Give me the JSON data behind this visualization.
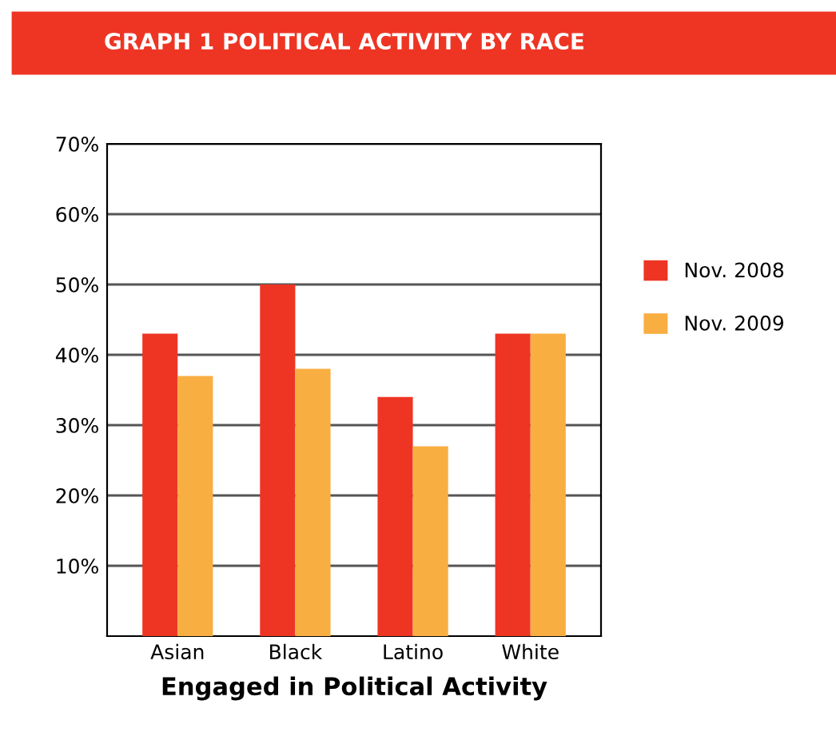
{
  "chart_data": {
    "type": "bar",
    "title": "GRAPH 1 POLITICAL ACTIVITY BY RACE",
    "xlabel": "Engaged in Political Activity",
    "categories": [
      "Asian",
      "Black",
      "Latino",
      "White"
    ],
    "series": [
      {
        "name": "Nov. 2008",
        "color": "#ee3524",
        "values": [
          43,
          50,
          34,
          43
        ]
      },
      {
        "name": "Nov. 2009",
        "color": "#f9ae42",
        "values": [
          37,
          38,
          27,
          43
        ]
      }
    ],
    "ylim": [
      0,
      70
    ],
    "yticks": [
      {
        "value": 10,
        "label": "10%"
      },
      {
        "value": 20,
        "label": "20%"
      },
      {
        "value": 30,
        "label": "30%"
      },
      {
        "value": 40,
        "label": "40%"
      },
      {
        "value": 50,
        "label": "50%"
      },
      {
        "value": 60,
        "label": "60%"
      },
      {
        "value": 70,
        "label": "70%"
      }
    ],
    "grid": "y",
    "legend": "right"
  }
}
